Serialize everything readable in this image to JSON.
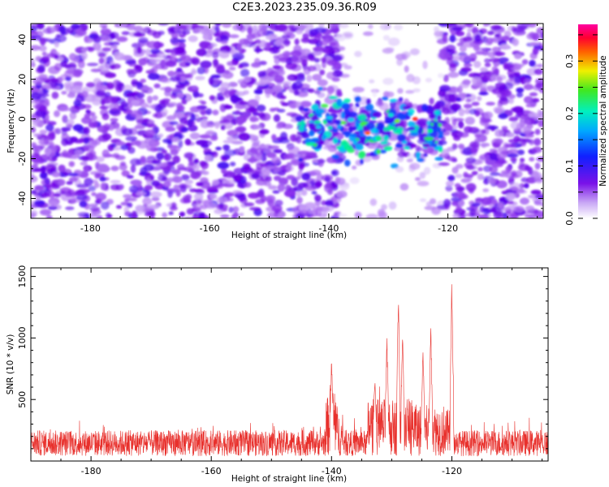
{
  "figure": {
    "title": "C2E3.2023.235.09.36.R09"
  },
  "chart_data": [
    {
      "type": "heatmap",
      "xlabel": "Height of straight line (km)",
      "ylabel": "Frequency (Hz)",
      "xlim": [
        -190,
        -104
      ],
      "ylim": [
        -50,
        48
      ],
      "xticks": [
        -180,
        -160,
        -140,
        -120
      ],
      "yticks": [
        -40,
        -20,
        0,
        20,
        40
      ],
      "colorbar": {
        "label": "Normalized spectral amplitude",
        "range": [
          0.0,
          0.37
        ],
        "ticks": [
          0.0,
          0.1,
          0.2,
          0.3
        ],
        "colormap": "rainbow (white-violet-blue-cyan-green-yellow-red-magenta)"
      },
      "features": [
        {
          "x_range": [
            -145,
            -121
          ],
          "frequency_center": -5,
          "peak_amplitude": 0.3,
          "description": "strong band near 0 Hz"
        },
        {
          "x_range": [
            -138,
            -121
          ],
          "frequency_range": [
            -50,
            48
          ],
          "description": "low-amplitude gap region"
        }
      ]
    },
    {
      "type": "line",
      "xlabel": "Height of straight line (km)",
      "ylabel": "SNR (10 * v/v)",
      "xlim": [
        -190,
        -104
      ],
      "ylim": [
        0,
        1570
      ],
      "xticks": [
        -180,
        -160,
        -140,
        -120
      ],
      "yticks": [
        500,
        1000,
        1500
      ],
      "color": "#e8302c",
      "peaks": [
        {
          "x": -140.0,
          "y": 900
        },
        {
          "x": -132.8,
          "y": 740
        },
        {
          "x": -130.8,
          "y": 1050
        },
        {
          "x": -128.9,
          "y": 1420
        },
        {
          "x": -128.2,
          "y": 1100
        },
        {
          "x": -124.8,
          "y": 1000
        },
        {
          "x": -123.5,
          "y": 1130
        },
        {
          "x": -120.0,
          "y": 1560
        }
      ],
      "baseline": {
        "x_range": [
          -190,
          -104
        ],
        "typical_y": [
          80,
          330
        ]
      }
    }
  ]
}
